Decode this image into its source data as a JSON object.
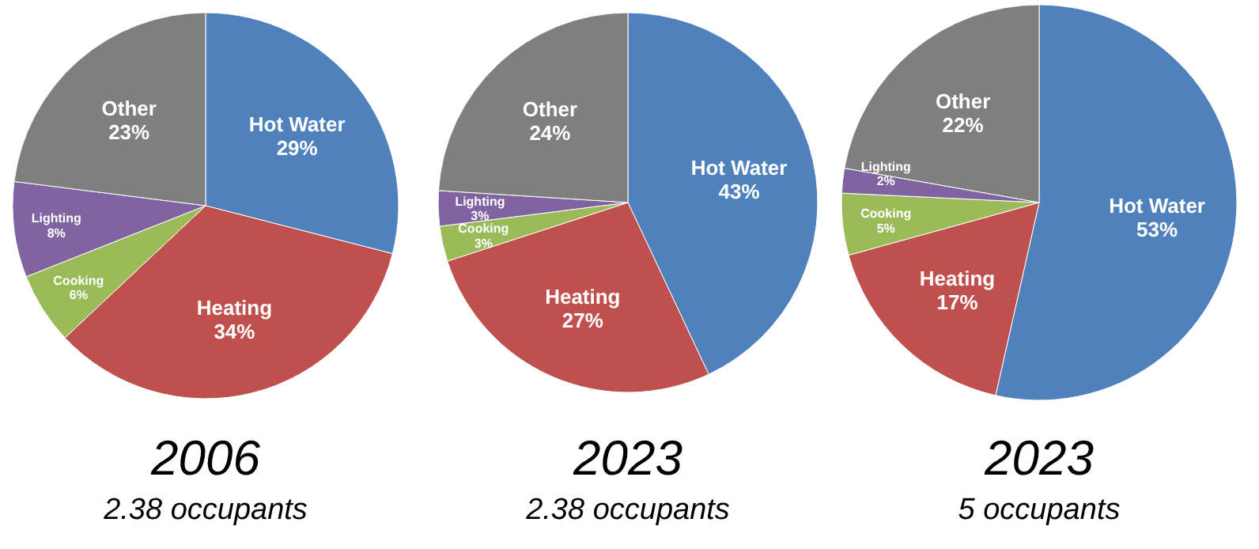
{
  "chart_data": [
    {
      "type": "pie",
      "title": "2006",
      "subtitle": "2.38 occupants",
      "categories": [
        "Hot Water",
        "Heating",
        "Cooking",
        "Lighting",
        "Other"
      ],
      "values": [
        29,
        34,
        6,
        8,
        23
      ],
      "colors": [
        "#4f81bd",
        "#c0504d",
        "#9bbb59",
        "#8064a2",
        "#7f7f7f"
      ],
      "value_labels": [
        "29%",
        "34%",
        "6%",
        "8%",
        "23%"
      ]
    },
    {
      "type": "pie",
      "title": "2023",
      "subtitle": "2.38 occupants",
      "categories": [
        "Hot Water",
        "Heating",
        "Cooking",
        "Lighting",
        "Other"
      ],
      "values": [
        43,
        27,
        3,
        3,
        24
      ],
      "colors": [
        "#4f81bd",
        "#c0504d",
        "#9bbb59",
        "#8064a2",
        "#7f7f7f"
      ],
      "value_labels": [
        "43%",
        "27%",
        "3%",
        "3%",
        "24%"
      ]
    },
    {
      "type": "pie",
      "title": "2023",
      "subtitle": "5 occupants",
      "categories": [
        "Hot Water",
        "Heating",
        "Cooking",
        "Lighting",
        "Other"
      ],
      "values": [
        53,
        17,
        5,
        2,
        22
      ],
      "colors": [
        "#4f81bd",
        "#c0504d",
        "#9bbb59",
        "#8064a2",
        "#7f7f7f"
      ],
      "value_labels": [
        "53%",
        "17%",
        "5%",
        "2%",
        "22%"
      ]
    }
  ]
}
